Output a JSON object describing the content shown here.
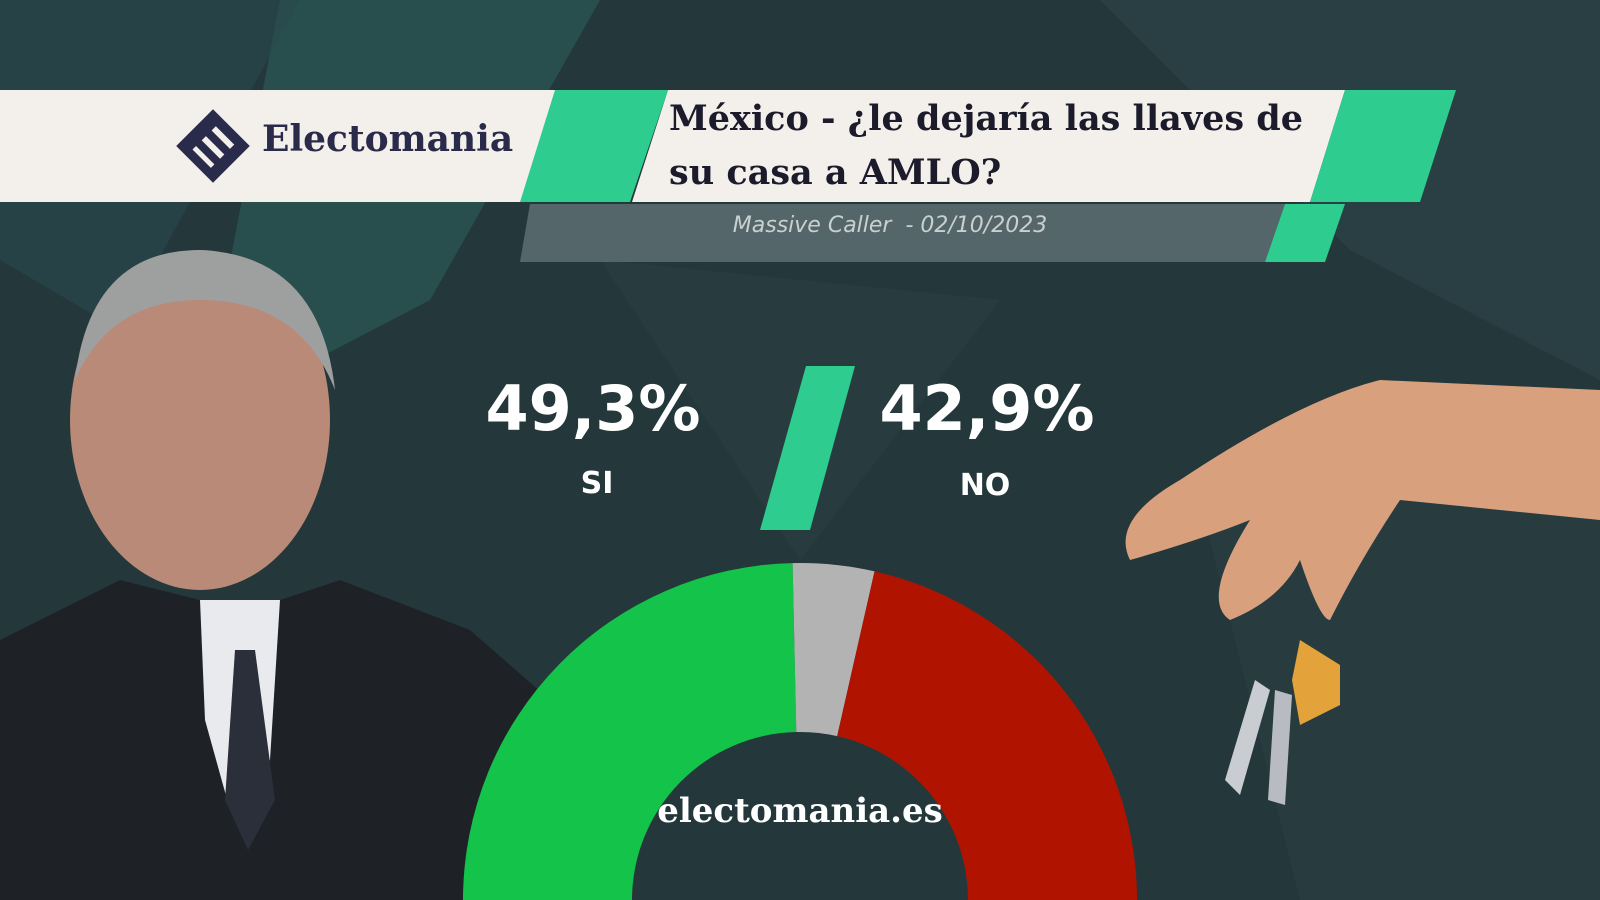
{
  "brand": "Electomania",
  "watermark": "electomania.es",
  "chart_data": {
    "type": "donut",
    "title": "México - ¿le dejaría las llaves de su casa a AMLO?",
    "subtitle": "Massive Caller  - 02/10/2023",
    "categories": [
      "SI",
      null,
      "NO"
    ],
    "values": [
      49.3,
      7.8,
      42.9
    ],
    "value_labels": [
      "49,3%",
      null,
      "42,9%"
    ],
    "colors": [
      "#14c44a",
      "#b3b3b3",
      "#b01400"
    ]
  }
}
